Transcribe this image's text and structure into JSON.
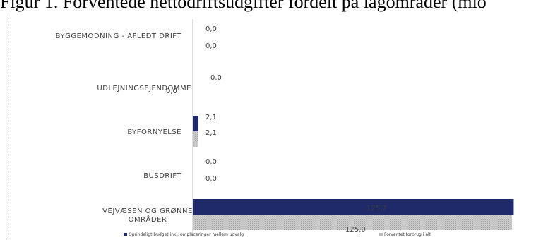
{
  "title": "Figur 1. Forventede nettodriftsudgifter fordelt på lagomrader (mio",
  "chart_data": {
    "type": "bar",
    "orientation": "horizontal",
    "categories": [
      "BYGGEMODNING - AFLEDT DRIFT",
      "UDLEJNINGSEJENDOMME",
      "BYFORNYELSE",
      "BUSDRIFT",
      "VEJVÆSEN OG GRØNNE OMRÅDER"
    ],
    "series": [
      {
        "name": "Oprindeligt budget inkl. omplaceringer mellem udvalg",
        "values": [
          0.0,
          0.0,
          2.1,
          0.0,
          125.7
        ],
        "value_labels": [
          "0,0",
          "0,0",
          "2,1",
          "0,0",
          "125,7"
        ],
        "color": "#1f2a6b"
      },
      {
        "name": "Forventet forbrug i alt",
        "values": [
          0.0,
          0.0,
          2.1,
          0.0,
          125.0
        ],
        "value_labels": [
          "0,0",
          "0,0",
          "2,1",
          "0,0",
          "125,0"
        ],
        "color": "#b8b8b8"
      }
    ],
    "xlim": [
      0,
      130
    ],
    "legend": "bottom",
    "grid": false
  }
}
